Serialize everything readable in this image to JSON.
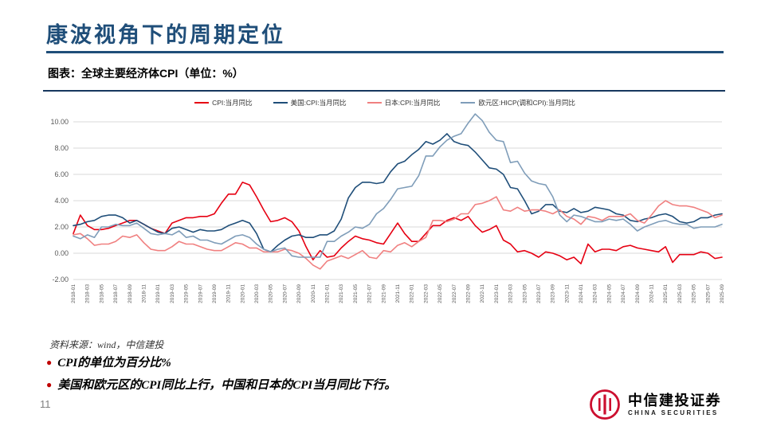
{
  "slide": {
    "title": "康波视角下的周期定位",
    "figure_caption": "图表：全球主要经济体CPI（单位：%）",
    "source_note": "资料来源：wind，中信建投",
    "bullets": [
      "CPI的单位为百分比%",
      "美国和欧元区的CPI同比上行，中国和日本的CPI当月同比下行。"
    ],
    "page_number": "11",
    "logo": {
      "name": "中信建投证券",
      "subname": "CHINA SECURITIES"
    }
  },
  "colors": {
    "title": "#1f4e79",
    "divider": "#17375e",
    "grid": "#d9d9d9",
    "axis_text": "#595959",
    "bullet": "#c00000",
    "logo_red": "#cc0f2f"
  },
  "chart_data": {
    "type": "line",
    "x_start": "2018-01",
    "x_end": "2025-09",
    "x_frequency": "monthly",
    "tick_every": 2,
    "ylim": [
      -2,
      10
    ],
    "yticks": [
      -2,
      0,
      2,
      4,
      6,
      8,
      10
    ],
    "grid": true,
    "legend_position": "top",
    "series": [
      {
        "name": "CPI:当月同比",
        "color": "#e60012",
        "values": [
          1.5,
          2.9,
          2.1,
          1.8,
          1.8,
          1.9,
          2.1,
          2.3,
          2.5,
          2.5,
          2.2,
          1.9,
          1.7,
          1.5,
          2.3,
          2.5,
          2.7,
          2.7,
          2.8,
          2.8,
          3.0,
          3.8,
          4.5,
          4.5,
          5.4,
          5.2,
          4.3,
          3.3,
          2.4,
          2.5,
          2.7,
          2.4,
          1.7,
          0.5,
          -0.5,
          0.2,
          -0.3,
          -0.2,
          0.4,
          0.9,
          1.3,
          1.1,
          1.0,
          0.8,
          0.7,
          1.5,
          2.3,
          1.5,
          0.9,
          0.9,
          1.5,
          2.1,
          2.1,
          2.5,
          2.7,
          2.5,
          2.8,
          2.1,
          1.6,
          1.8,
          2.1,
          1.0,
          0.7,
          0.1,
          0.2,
          0.0,
          -0.3,
          0.1,
          0.0,
          -0.2,
          -0.5,
          -0.3,
          -0.8,
          0.7,
          0.1,
          0.3,
          0.3,
          0.2,
          0.5,
          0.6,
          0.4,
          0.3,
          0.2,
          0.1,
          0.5,
          -0.7,
          -0.1,
          -0.1,
          -0.1,
          0.1,
          0.0,
          -0.4,
          -0.3
        ]
      },
      {
        "name": "美国:CPI:当月同比",
        "color": "#1f4e79",
        "values": [
          2.1,
          2.2,
          2.4,
          2.5,
          2.8,
          2.9,
          2.9,
          2.7,
          2.3,
          2.5,
          2.2,
          1.9,
          1.6,
          1.5,
          1.9,
          2.0,
          1.8,
          1.6,
          1.8,
          1.7,
          1.7,
          1.8,
          2.1,
          2.3,
          2.5,
          2.3,
          1.5,
          0.3,
          0.1,
          0.6,
          1.0,
          1.3,
          1.4,
          1.2,
          1.2,
          1.4,
          1.4,
          1.7,
          2.6,
          4.2,
          5.0,
          5.4,
          5.4,
          5.3,
          5.4,
          6.2,
          6.8,
          7.0,
          7.5,
          7.9,
          8.5,
          8.3,
          8.6,
          9.1,
          8.5,
          8.3,
          8.2,
          7.7,
          7.1,
          6.5,
          6.4,
          6.0,
          5.0,
          4.9,
          4.0,
          3.0,
          3.2,
          3.7,
          3.7,
          3.2,
          3.1,
          3.4,
          3.1,
          3.2,
          3.5,
          3.4,
          3.3,
          3.0,
          2.9,
          2.5,
          2.4,
          2.6,
          2.7,
          2.9,
          3.0,
          2.8,
          2.4,
          2.3,
          2.4,
          2.7,
          2.7,
          2.9,
          3.0
        ]
      },
      {
        "name": "日本:CPI:当月同比",
        "color": "#f08080",
        "values": [
          1.4,
          1.5,
          1.1,
          0.6,
          0.7,
          0.7,
          0.9,
          1.3,
          1.2,
          1.4,
          0.8,
          0.3,
          0.2,
          0.2,
          0.5,
          0.9,
          0.7,
          0.7,
          0.5,
          0.3,
          0.2,
          0.2,
          0.5,
          0.8,
          0.7,
          0.4,
          0.4,
          0.1,
          0.1,
          0.1,
          0.3,
          0.2,
          0.0,
          -0.4,
          -0.9,
          -1.2,
          -0.6,
          -0.4,
          -0.2,
          -0.4,
          -0.1,
          0.2,
          -0.3,
          -0.4,
          0.2,
          0.1,
          0.6,
          0.8,
          0.5,
          0.9,
          1.2,
          2.5,
          2.5,
          2.4,
          2.6,
          3.0,
          3.0,
          3.7,
          3.8,
          4.0,
          4.3,
          3.3,
          3.2,
          3.5,
          3.2,
          3.3,
          3.3,
          3.2,
          3.0,
          3.3,
          2.8,
          2.6,
          2.2,
          2.8,
          2.7,
          2.5,
          2.8,
          2.8,
          2.8,
          3.0,
          2.5,
          2.3,
          2.9,
          3.6,
          4.0,
          3.7,
          3.6,
          3.6,
          3.5,
          3.3,
          3.1,
          2.7,
          2.9
        ]
      },
      {
        "name": "欧元区:HICP(调和CPI):当月同比",
        "color": "#7f9db9",
        "values": [
          1.3,
          1.1,
          1.4,
          1.2,
          2.0,
          2.0,
          2.2,
          2.1,
          2.1,
          2.3,
          1.9,
          1.5,
          1.4,
          1.5,
          1.4,
          1.7,
          1.2,
          1.3,
          1.0,
          1.0,
          0.8,
          0.7,
          1.0,
          1.3,
          1.4,
          1.2,
          0.7,
          0.3,
          0.1,
          0.3,
          0.4,
          -0.2,
          -0.3,
          -0.3,
          -0.3,
          -0.3,
          0.9,
          0.9,
          1.3,
          1.6,
          2.0,
          1.9,
          2.2,
          3.0,
          3.4,
          4.1,
          4.9,
          5.0,
          5.1,
          5.9,
          7.4,
          7.4,
          8.1,
          8.6,
          8.9,
          9.1,
          9.9,
          10.6,
          10.1,
          9.2,
          8.6,
          8.5,
          6.9,
          7.0,
          6.1,
          5.5,
          5.3,
          5.2,
          4.3,
          2.9,
          2.4,
          2.9,
          2.8,
          2.6,
          2.4,
          2.4,
          2.6,
          2.5,
          2.6,
          2.2,
          1.7,
          2.0,
          2.2,
          2.4,
          2.5,
          2.3,
          2.2,
          2.2,
          1.9,
          2.0,
          2.0,
          2.0,
          2.2
        ]
      }
    ]
  }
}
